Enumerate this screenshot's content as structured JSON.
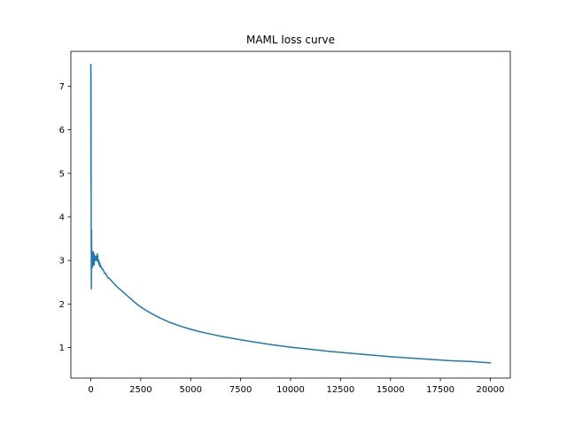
{
  "chart_data": {
    "type": "line",
    "title": "MAML loss curve",
    "xlabel": "",
    "ylabel": "",
    "xlim": [
      -1000,
      21000
    ],
    "ylim": [
      0.3,
      7.8
    ],
    "xticks": [
      0,
      2500,
      5000,
      7500,
      10000,
      12500,
      15000,
      17500,
      20000
    ],
    "yticks": [
      1,
      2,
      3,
      4,
      5,
      6,
      7
    ],
    "grid": false,
    "series": [
      {
        "color": "#1f77b4",
        "x": [
          0,
          2,
          4,
          6,
          8,
          10,
          12,
          14,
          16,
          18,
          20,
          22,
          25,
          28,
          32,
          36,
          40,
          45,
          50,
          55,
          60,
          70,
          80,
          90,
          100,
          110,
          120,
          130,
          140,
          150,
          160,
          170,
          180,
          190,
          200,
          215,
          230,
          245,
          260,
          275,
          290,
          305,
          320,
          340,
          360,
          380,
          400,
          420,
          440,
          460,
          480,
          500,
          530,
          560,
          600,
          650,
          700,
          750,
          800,
          850,
          900,
          1000,
          1100,
          1200,
          1300,
          1400,
          1500,
          1600,
          1800,
          2000,
          2250,
          2500,
          2750,
          3000,
          3500,
          4000,
          4500,
          5000,
          5500,
          6000,
          6500,
          7000,
          7500,
          8000,
          9000,
          10000,
          11000,
          12000,
          13000,
          14000,
          15000,
          16000,
          17000,
          18000,
          19000,
          20000
        ],
        "y": [
          7.5,
          5.0,
          7.4,
          4.7,
          7.2,
          6.0,
          5.2,
          4.7,
          4.4,
          3.8,
          3.6,
          3.3,
          2.7,
          2.35,
          3.0,
          3.7,
          3.2,
          2.8,
          3.1,
          2.9,
          3.1,
          2.9,
          3.2,
          2.85,
          3.1,
          3.0,
          3.2,
          2.9,
          3.1,
          3.0,
          3.15,
          2.9,
          3.1,
          3.0,
          3.1,
          3.05,
          3.0,
          3.1,
          3.0,
          3.05,
          3.1,
          3.0,
          3.15,
          3.1,
          3.0,
          2.95,
          3.0,
          2.9,
          2.95,
          2.85,
          2.9,
          2.85,
          2.85,
          2.8,
          2.8,
          2.75,
          2.7,
          2.7,
          2.65,
          2.6,
          2.6,
          2.55,
          2.5,
          2.45,
          2.4,
          2.36,
          2.32,
          2.28,
          2.2,
          2.12,
          2.02,
          1.93,
          1.86,
          1.79,
          1.67,
          1.57,
          1.49,
          1.42,
          1.36,
          1.31,
          1.26,
          1.22,
          1.18,
          1.14,
          1.07,
          1.01,
          0.96,
          0.91,
          0.87,
          0.83,
          0.79,
          0.76,
          0.73,
          0.7,
          0.68,
          0.65
        ]
      }
    ]
  }
}
